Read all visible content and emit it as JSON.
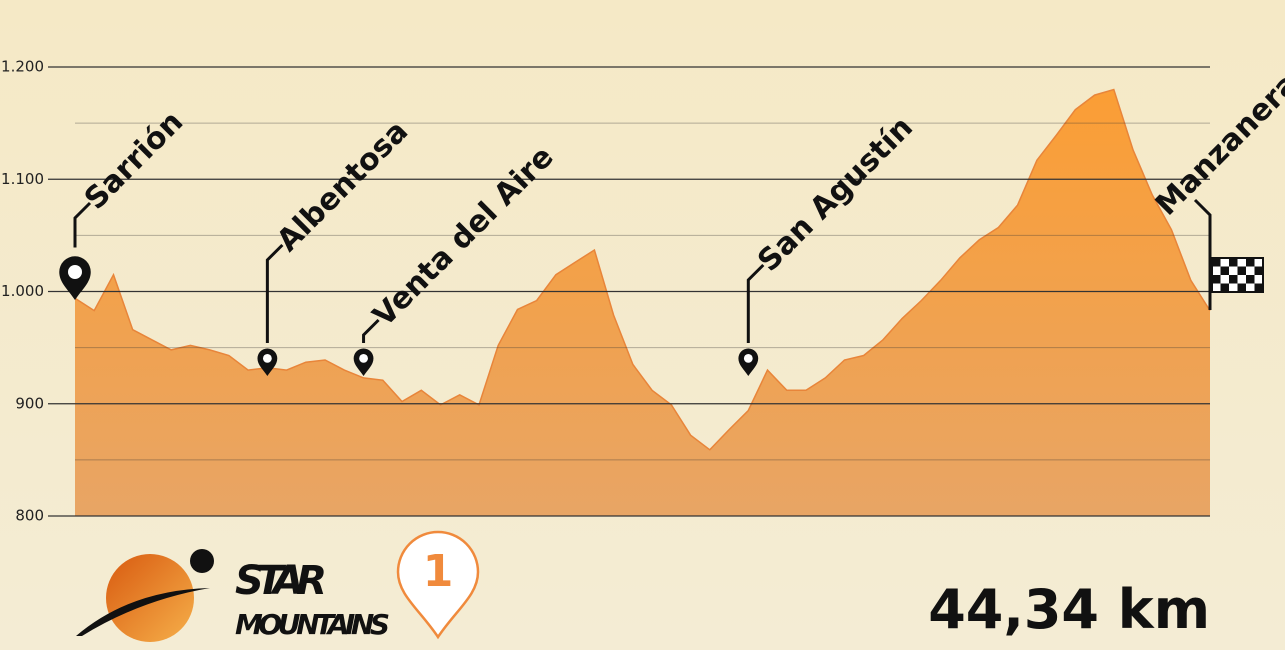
{
  "chart_data": {
    "type": "area",
    "values": [
      994,
      983,
      1015,
      966,
      957,
      948,
      952,
      948,
      943,
      930,
      932,
      930,
      937,
      939,
      930,
      923,
      921,
      902,
      912,
      899,
      908,
      899,
      952,
      984,
      992,
      1015,
      1026,
      1037,
      979,
      935,
      912,
      899,
      872,
      859,
      877,
      894,
      930,
      912,
      912,
      923,
      939,
      943,
      957,
      976,
      992,
      1010,
      1030,
      1046,
      1057,
      1077,
      1117,
      1139,
      1162,
      1175,
      1180,
      1126,
      1086,
      1055,
      1010,
      983
    ],
    "ylim": [
      800,
      1200
    ],
    "yticks": [
      {
        "value": 800,
        "label": "800"
      },
      {
        "value": 900,
        "label": "900"
      },
      {
        "value": 1000,
        "label": "1.000"
      },
      {
        "value": 1100,
        "label": "1.100"
      },
      {
        "value": 1200,
        "label": "1.200"
      }
    ],
    "minor_yticks": [
      850,
      950,
      1050,
      1150
    ],
    "grid": true,
    "color": "#f2a043",
    "waypoints": [
      {
        "name": "Sarrión",
        "index": 0,
        "marker": "start"
      },
      {
        "name": "Albentosa",
        "index": 10,
        "marker": "pin"
      },
      {
        "name": "Venta del Aire",
        "index": 15,
        "marker": "pin"
      },
      {
        "name": "San Agustín",
        "index": 35,
        "marker": "pin"
      },
      {
        "name": "Manzanera",
        "index": 59,
        "marker": "finish"
      }
    ],
    "distance": "44,34 km",
    "brand": [
      "STAR",
      "MOUNTAINS"
    ],
    "stage": "1"
  }
}
